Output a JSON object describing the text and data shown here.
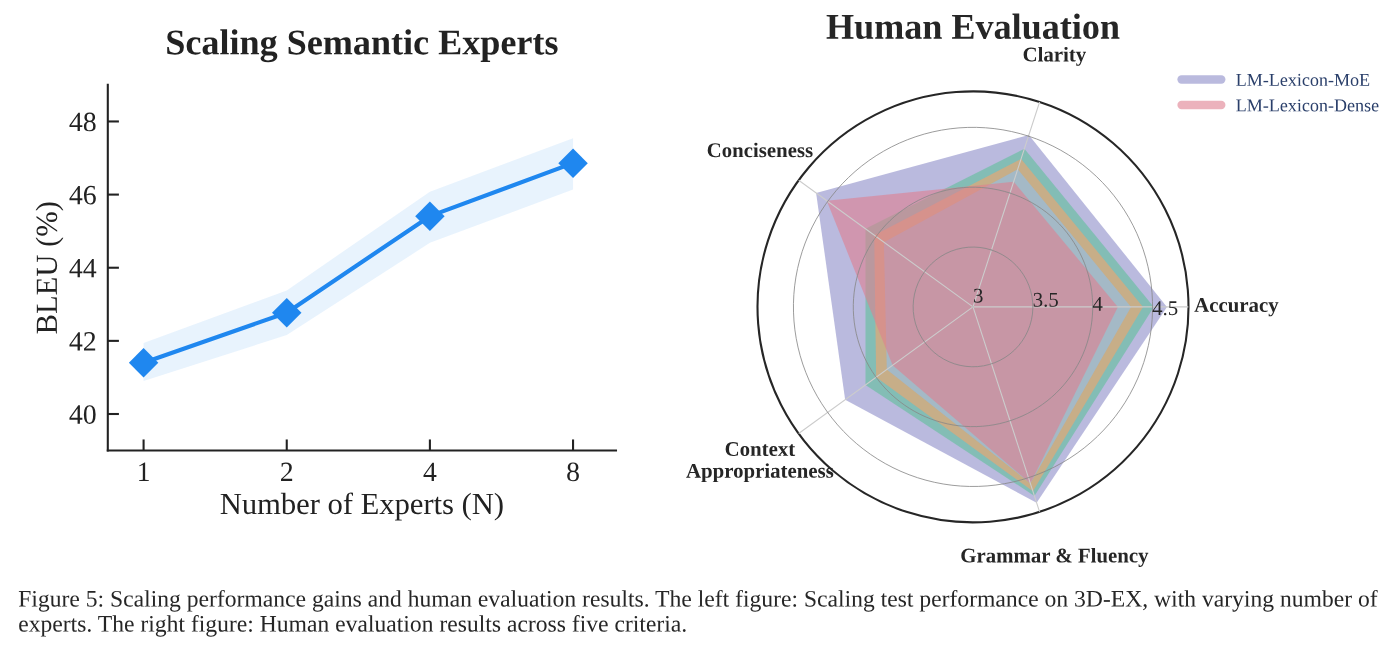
{
  "chart_data": [
    {
      "type": "line",
      "title": "Scaling Semantic Experts",
      "xlabel": "Number of Experts (N)",
      "ylabel": "BLEU (%)",
      "categories": [
        "1",
        "2",
        "4",
        "8"
      ],
      "series": [
        {
          "color": "#1f87ef",
          "values": [
            41.4,
            42.77,
            45.41,
            46.86
          ],
          "lower": [
            40.9,
            42.16,
            44.68,
            46.14
          ],
          "upper": [
            41.94,
            43.38,
            46.08,
            47.54
          ]
        }
      ],
      "ylim": [
        39,
        49
      ],
      "yticks": [
        40,
        42,
        44,
        46,
        48
      ],
      "marker": "diamond",
      "line_style": "solid",
      "grid": false,
      "legend": false,
      "annotations": [
        "Figure 5: Scaling performance gains and human evaluation results. The left figure: Scaling test performance on 3D-EX, with varying number of experts. The right figure: Human evaluation results across five criteria."
      ]
    },
    {
      "type": "radar",
      "title": "Human Evaluation",
      "categories": [
        "Clarity",
        "Accuracy",
        "Grammar & Fluency",
        "Context\nAppropriateness",
        "Conciseness"
      ],
      "series": [
        {
          "name": "LM-Lexicon-MoE",
          "color": "#8c8cc8",
          "values": [
            4.51,
            4.62,
            4.72,
            4.32,
            4.62
          ]
        },
        {
          "color": "#5fc09a",
          "values": [
            4.39,
            4.51,
            4.66,
            4.11,
            4.11
          ]
        },
        {
          "color": "#f5a36a",
          "values": [
            4.3,
            4.42,
            4.62,
            4.0,
            4.02
          ]
        },
        {
          "color": "#8cc0f0",
          "values": [
            4.21,
            4.32,
            4.55,
            3.89,
            3.92
          ]
        },
        {
          "name": "LM-Lexicon-Dense",
          "color": "#e07f90",
          "values": [
            4.1,
            4.21,
            4.55,
            3.83,
            4.51
          ]
        }
      ],
      "ylim": [
        3,
        4.8
      ],
      "yticks": [
        3,
        3.5,
        4,
        4.5
      ],
      "grid": true,
      "legend": "top right"
    }
  ]
}
